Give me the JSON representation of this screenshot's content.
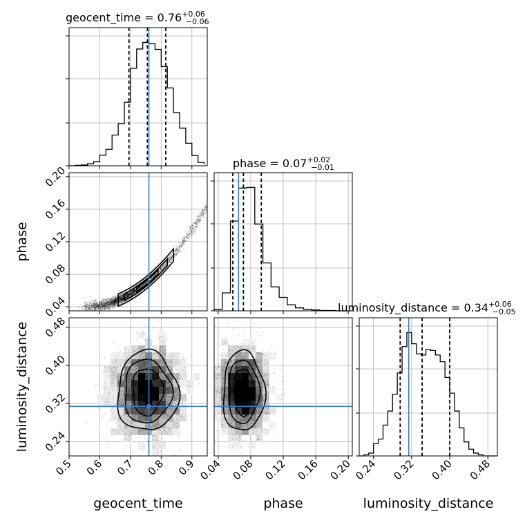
{
  "chart_data": {
    "type": "corner",
    "parameters": [
      {
        "name": "geocent_time",
        "label": "geocent_time",
        "range": [
          0.5,
          0.95
        ],
        "ticks": [
          0.5,
          0.6,
          0.7,
          0.8,
          0.9
        ],
        "tick_labels": [
          "0.5",
          "0.6",
          "0.7",
          "0.8",
          "0.9"
        ],
        "truth": 0.76,
        "quantiles": [
          0.695,
          0.755,
          0.815
        ],
        "title": {
          "prefix": "geocent_time = 0.76",
          "plus": "+0.06",
          "minus": "−0.06"
        }
      },
      {
        "name": "phase",
        "label": "phase",
        "range": [
          0.035,
          0.205
        ],
        "ticks": [
          0.04,
          0.08,
          0.12,
          0.16,
          0.2
        ],
        "tick_labels": [
          "0.04",
          "0.08",
          "0.12",
          "0.16",
          "0.20"
        ],
        "truth": 0.065,
        "quantiles": [
          0.058,
          0.071,
          0.093
        ],
        "title": {
          "prefix": "phase = 0.07",
          "plus": "+0.02",
          "minus": "−0.01"
        }
      },
      {
        "name": "luminosity_distance",
        "label": "luminosity_distance",
        "range": [
          0.21,
          0.5
        ],
        "ticks": [
          0.24,
          0.32,
          0.4,
          0.48
        ],
        "tick_labels": [
          "0.24",
          "0.32",
          "0.40",
          "0.48"
        ],
        "truth": 0.314,
        "quantiles": [
          0.296,
          0.342,
          0.4
        ],
        "title": {
          "prefix": "luminosity_distance = 0.34",
          "plus": "+0.06",
          "minus": "−0.05"
        }
      }
    ],
    "histograms": [
      {
        "param": "geocent_time",
        "bin_edges": [
          0.5,
          0.52,
          0.54,
          0.56,
          0.58,
          0.6,
          0.62,
          0.64,
          0.66,
          0.68,
          0.7,
          0.72,
          0.74,
          0.76,
          0.78,
          0.8,
          0.82,
          0.84,
          0.86,
          0.88,
          0.9,
          0.92,
          0.94
        ],
        "counts": [
          0,
          1,
          2,
          5,
          10,
          26,
          40,
          75,
          103,
          155,
          238,
          285,
          301,
          298,
          284,
          242,
          190,
          130,
          92,
          55,
          25,
          8,
          4
        ]
      },
      {
        "param": "phase",
        "bin_edges": [
          0.035,
          0.045,
          0.055,
          0.065,
          0.075,
          0.085,
          0.095,
          0.105,
          0.115,
          0.125,
          0.135,
          0.145,
          0.155,
          0.165,
          0.175,
          0.185,
          0.195
        ],
        "counts": [
          5,
          60,
          300,
          410,
          412,
          290,
          160,
          80,
          45,
          20,
          10,
          5,
          3,
          1,
          1,
          0,
          0
        ]
      },
      {
        "param": "luminosity_distance",
        "bin_edges": [
          0.2,
          0.21,
          0.22,
          0.23,
          0.24,
          0.25,
          0.26,
          0.27,
          0.28,
          0.29,
          0.3,
          0.31,
          0.32,
          0.33,
          0.34,
          0.35,
          0.36,
          0.37,
          0.38,
          0.39,
          0.4,
          0.41,
          0.42,
          0.43,
          0.44,
          0.45,
          0.46,
          0.47,
          0.48,
          0.49,
          0.5
        ],
        "counts": [
          0,
          0,
          2,
          5,
          22,
          30,
          55,
          80,
          110,
          148,
          195,
          220,
          200,
          182,
          180,
          190,
          188,
          180,
          168,
          140,
          112,
          80,
          50,
          25,
          12,
          5,
          2,
          0,
          0,
          0
        ]
      }
    ],
    "grid": true,
    "truth_color": "#3b7dc2"
  }
}
